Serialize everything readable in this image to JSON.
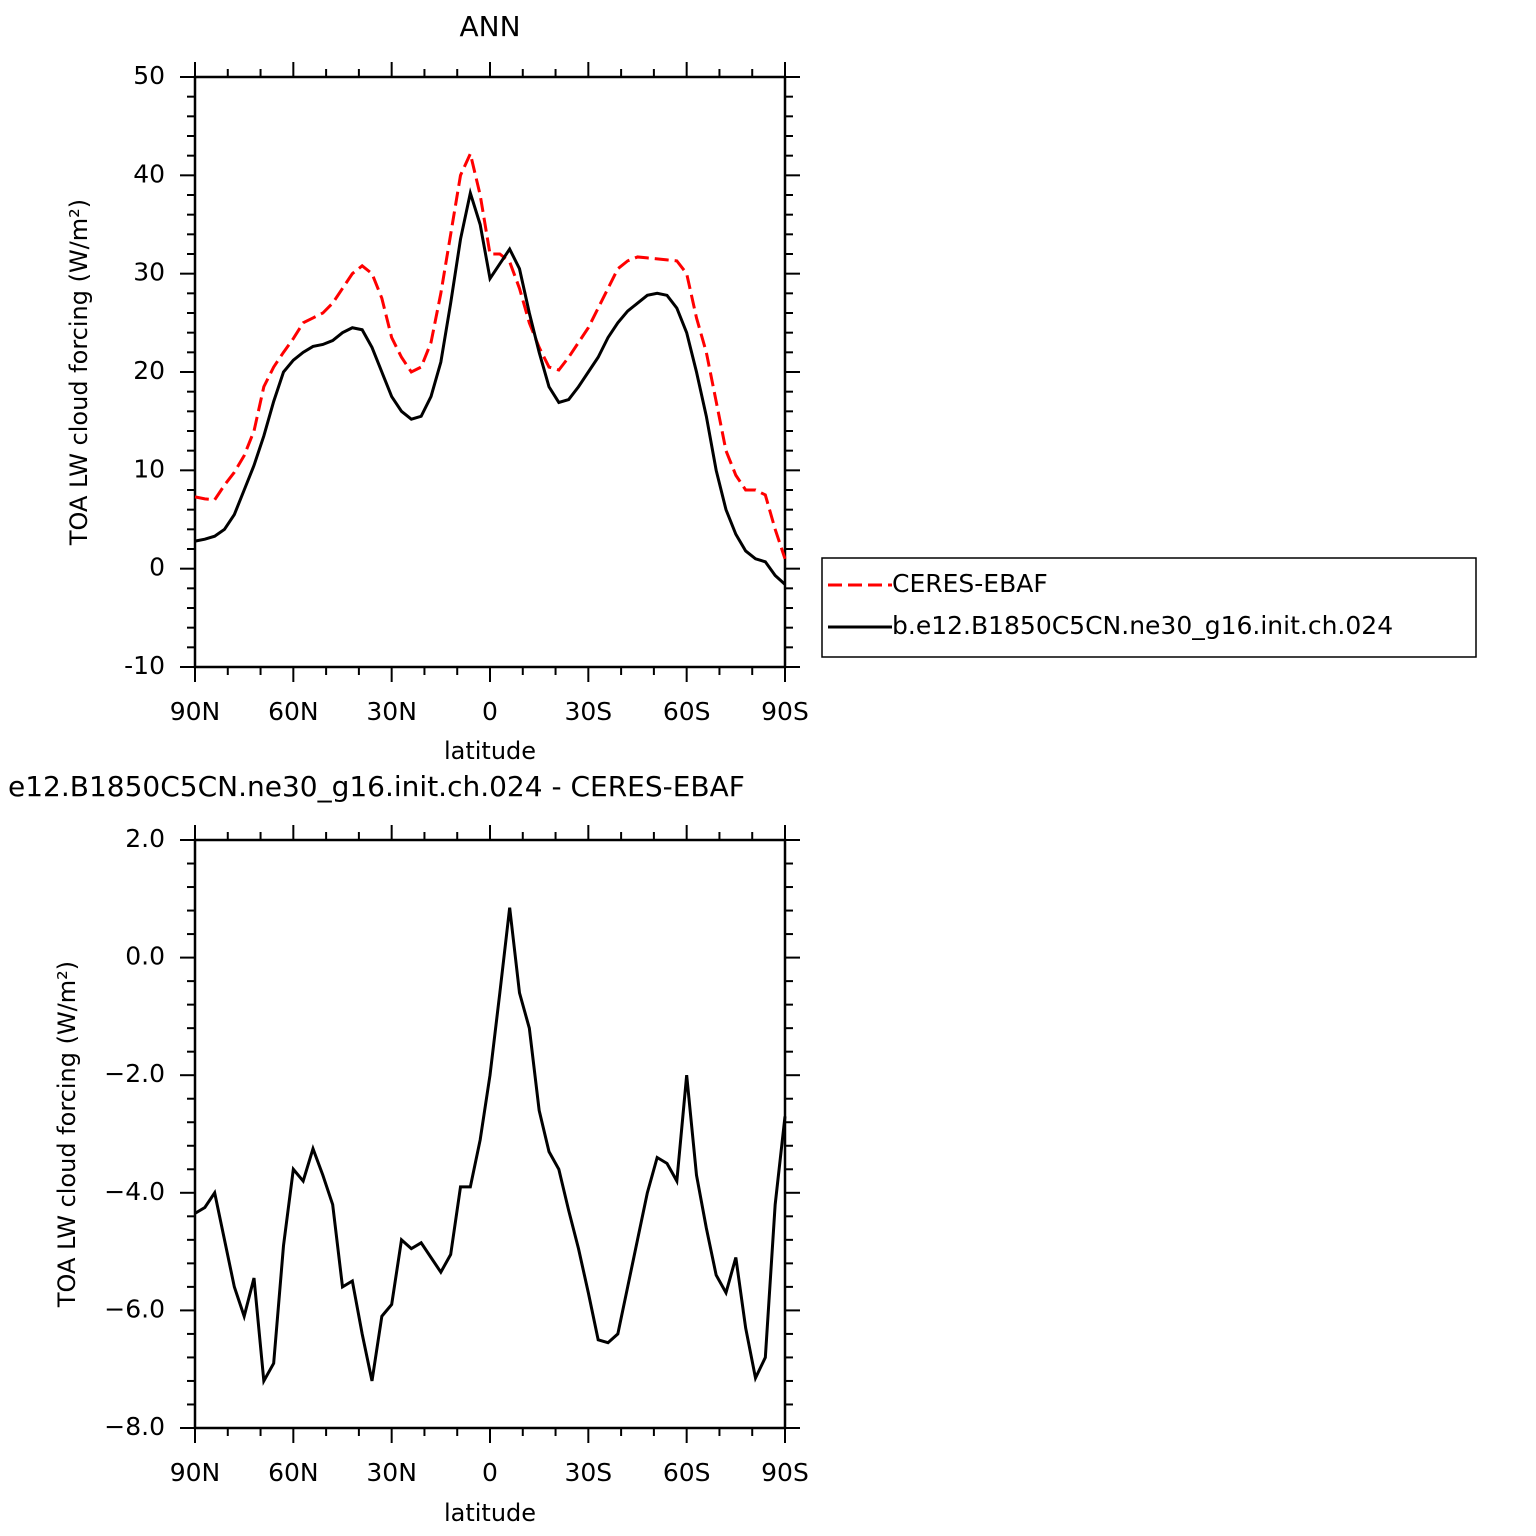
{
  "chart_data": [
    {
      "type": "line",
      "title": "ANN",
      "ylabel": "TOA LW cloud forcing (W/m²)",
      "xlabel": "latitude",
      "x": [
        90,
        87,
        84,
        81,
        78,
        75,
        72,
        69,
        66,
        63,
        60,
        57,
        54,
        51,
        48,
        45,
        42,
        39,
        36,
        33,
        30,
        27,
        24,
        21,
        18,
        15,
        12,
        9,
        6,
        3,
        0,
        -3,
        -6,
        -9,
        -12,
        -15,
        -18,
        -21,
        -24,
        -27,
        -30,
        -33,
        -36,
        -39,
        -42,
        -45,
        -48,
        -51,
        -54,
        -57,
        -60,
        -63,
        -66,
        -69,
        -72,
        -75,
        -78,
        -81,
        -84,
        -87,
        -90
      ],
      "series": [
        {
          "name": "CERES-EBAF",
          "color": "#ff0000",
          "dash": true,
          "values": [
            7.3,
            7.1,
            7.0,
            8.5,
            9.8,
            11.5,
            14,
            18.5,
            20.5,
            22,
            23.4,
            25,
            25.5,
            26,
            27,
            28.5,
            30,
            30.8,
            30,
            27.5,
            23.5,
            21.5,
            20,
            20.5,
            23,
            28,
            34,
            40,
            42.2,
            38,
            32,
            32,
            31.2,
            28.5,
            25,
            22.5,
            20.5,
            20.2,
            21.5,
            23,
            24.5,
            26.5,
            28.5,
            30.5,
            31.3,
            31.7,
            31.6,
            31.5,
            31.4,
            31.3,
            30,
            25.5,
            22,
            17,
            12,
            9.5,
            8,
            8,
            7.5,
            4,
            1
          ]
        },
        {
          "name": "b.e12.B1850C5CN.ne30_g16.init.ch.024",
          "color": "#000000",
          "dash": false,
          "values": [
            2.8,
            3.0,
            3.3,
            4.0,
            5.5,
            8,
            10.5,
            13.5,
            17,
            20,
            21.2,
            22,
            22.6,
            22.8,
            23.2,
            24,
            24.5,
            24.3,
            22.5,
            20,
            17.5,
            16,
            15.2,
            15.5,
            17.5,
            21,
            27,
            33.5,
            38.2,
            35,
            29.5,
            31,
            32.5,
            30.5,
            26,
            22,
            18.5,
            16.9,
            17.2,
            18.5,
            20,
            21.5,
            23.5,
            25,
            26.2,
            27,
            27.8,
            28,
            27.8,
            26.5,
            24,
            20,
            15.5,
            10,
            6,
            3.5,
            1.8,
            1.0,
            0.7,
            -0.7,
            -1.6
          ]
        }
      ],
      "xlim": [
        90,
        -90
      ],
      "xticks": [
        {
          "value": 90,
          "label": "90N"
        },
        {
          "value": 60,
          "label": "60N"
        },
        {
          "value": 30,
          "label": "30N"
        },
        0,
        {
          "value": -30,
          "label": "30S"
        },
        {
          "value": -60,
          "label": "60S"
        },
        {
          "value": -90,
          "label": "90S"
        }
      ],
      "ylim": [
        -10,
        50
      ],
      "yticks": [
        -10,
        0,
        10,
        20,
        30,
        40,
        50
      ]
    },
    {
      "type": "line",
      "title": "e12.B1850C5CN.ne30_g16.init.ch.024 - CERES-EBAF",
      "ylabel": "TOA LW cloud forcing (W/m²)",
      "xlabel": "latitude",
      "x": [
        90,
        87,
        84,
        81,
        78,
        75,
        72,
        69,
        66,
        63,
        60,
        57,
        54,
        51,
        48,
        45,
        42,
        39,
        36,
        33,
        30,
        27,
        24,
        21,
        18,
        15,
        12,
        9,
        6,
        3,
        0,
        -3,
        -6,
        -9,
        -12,
        -15,
        -18,
        -21,
        -24,
        -27,
        -30,
        -33,
        -36,
        -39,
        -42,
        -45,
        -48,
        -51,
        -54,
        -57,
        -60,
        -63,
        -66,
        -69,
        -72,
        -75,
        -78,
        -81,
        -84,
        -87,
        -90
      ],
      "values": [
        -4.35,
        -4.25,
        -4.0,
        -4.8,
        -5.6,
        -6.1,
        -5.45,
        -7.2,
        -6.9,
        -4.9,
        -3.6,
        -3.8,
        -3.25,
        -3.7,
        -4.2,
        -5.6,
        -5.5,
        -6.4,
        -7.2,
        -6.1,
        -5.9,
        -4.8,
        -4.95,
        -4.85,
        -5.1,
        -5.35,
        -5.05,
        -3.9,
        -3.9,
        -3.1,
        -2.0,
        -0.6,
        0.85,
        -0.6,
        -1.2,
        -2.6,
        -3.3,
        -3.6,
        -4.3,
        -4.95,
        -5.7,
        -6.5,
        -6.55,
        -6.4,
        -5.6,
        -4.8,
        -4.0,
        -3.4,
        -3.5,
        -3.8,
        -2.0,
        -3.7,
        -4.6,
        -5.4,
        -5.7,
        -5.1,
        -6.3,
        -7.15,
        -6.8,
        -4.2,
        -2.7
      ],
      "color": "#000000",
      "xlim": [
        90,
        -90
      ],
      "xticks": [
        {
          "value": 90,
          "label": "90N"
        },
        {
          "value": 60,
          "label": "60N"
        },
        {
          "value": 30,
          "label": "30N"
        },
        0,
        {
          "value": -30,
          "label": "30S"
        },
        {
          "value": -60,
          "label": "60S"
        },
        {
          "value": -90,
          "label": "90S"
        }
      ],
      "ylim": [
        -8,
        2
      ],
      "yticks": [
        {
          "value": -8,
          "label": "−8.0"
        },
        {
          "value": -6,
          "label": "−6.0"
        },
        {
          "value": -4,
          "label": "−4.0"
        },
        {
          "value": -2,
          "label": "−2.0"
        },
        {
          "value": 0,
          "label": "0.0"
        },
        {
          "value": 2,
          "label": "2.0"
        }
      ]
    }
  ]
}
